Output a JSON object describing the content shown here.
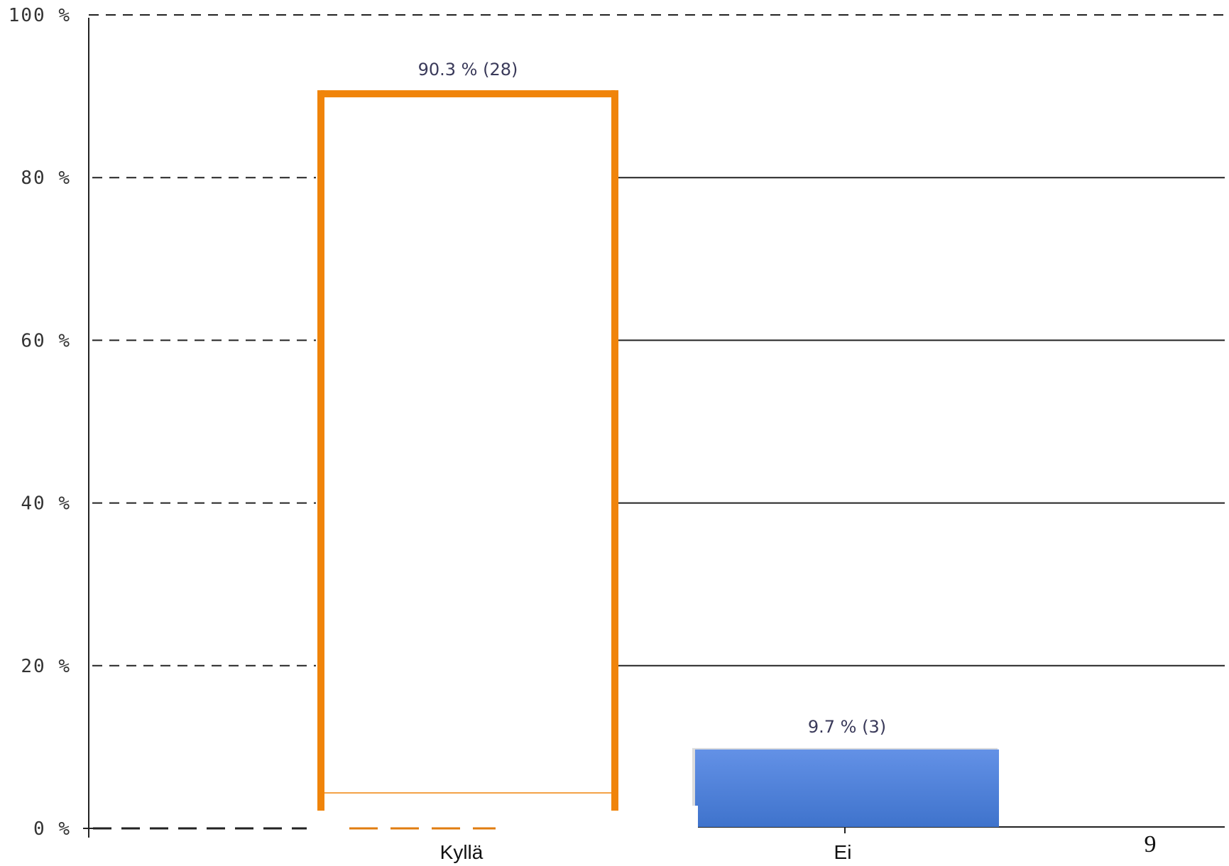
{
  "chart_data": {
    "type": "bar",
    "categories": [
      "Kyllä",
      "Ei"
    ],
    "values": [
      90.3,
      9.7
    ],
    "counts": [
      28,
      3
    ],
    "data_labels": [
      "90.3 % (28)",
      "9.7 % (3)"
    ],
    "ylim": [
      0,
      100
    ],
    "yticks": [
      0,
      20,
      40,
      60,
      80,
      100
    ],
    "ytick_labels": [
      "0 %",
      "20 %",
      "40 %",
      "60 %",
      "80 %",
      "100 %"
    ],
    "grid": true,
    "title": "",
    "xlabel": "",
    "ylabel": "",
    "colors": [
      "#f0840a",
      "#4a7fd8"
    ]
  },
  "page_number": "9"
}
